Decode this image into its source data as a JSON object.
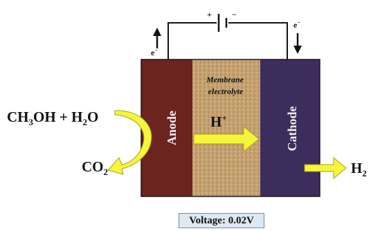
{
  "labels": {
    "battery_plus": "+",
    "battery_minus": "−",
    "electron_left": "e",
    "electron_right": "e",
    "electron_charge": "−",
    "membrane_line1": "Membrane",
    "membrane_line2": "electrolyte",
    "anode": "Anode",
    "cathode": "Cathode",
    "proton": "H",
    "proton_charge": "+",
    "fuel_ch3oh": "CH",
    "fuel_sub3": "3",
    "fuel_oh": "OH + H",
    "fuel_sub2": "2",
    "fuel_o": "O",
    "co2_main": "CO",
    "co2_sub": "2",
    "h2_main": "H",
    "h2_sub": "2"
  },
  "voltage": {
    "text": "Voltage: 0.02V"
  },
  "colors": {
    "anode": "#6b2420",
    "cathode": "#3d2d5c",
    "membrane": "#c4a070",
    "arrow_fill": "#f5f53a",
    "arrow_stroke": "#a8a020",
    "wire": "#111111",
    "voltage_bg": "#dce8f2"
  }
}
